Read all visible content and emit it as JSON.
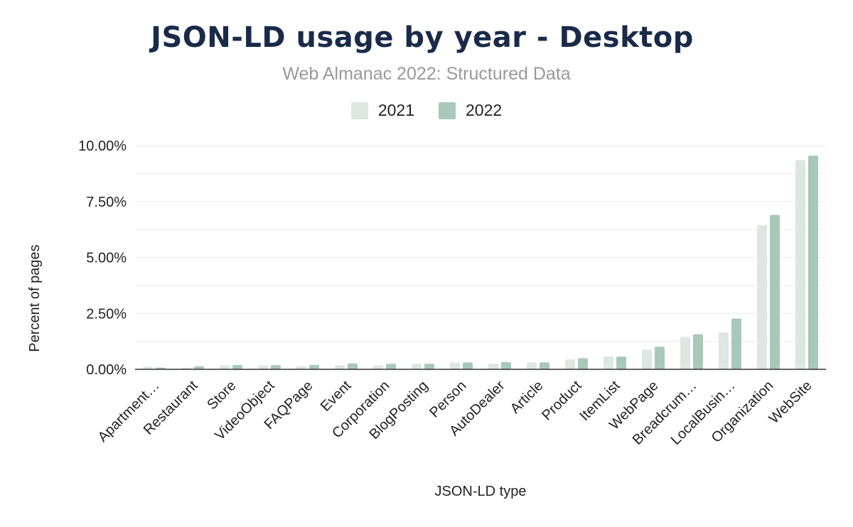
{
  "colors": {
    "s2021": "#dde6e1",
    "s2022": "#a8c9b8",
    "grid": "#ececec",
    "axis": "#333333"
  },
  "chart_data": {
    "type": "bar",
    "title": "JSON-LD usage by year - Desktop",
    "subtitle": "Web Almanac 2022: Structured Data",
    "xlabel": "JSON-LD type",
    "ylabel": "Percent of pages",
    "ylim": [
      0,
      10
    ],
    "yticks": [
      "0.00%",
      "2.50%",
      "5.00%",
      "7.50%",
      "10.00%"
    ],
    "ytick_values": [
      0,
      2.5,
      5,
      7.5,
      10
    ],
    "grid": true,
    "legend_position": "top-center",
    "categories": [
      "Apartment…",
      "Restaurant",
      "Store",
      "VideoObject",
      "FAQPage",
      "Event",
      "Corporation",
      "BlogPosting",
      "Person",
      "AutoDealer",
      "Article",
      "Product",
      "ItemList",
      "WebPage",
      "Breadcrum…",
      "LocalBusin…",
      "Organization",
      "WebSite"
    ],
    "series": [
      {
        "name": "2021",
        "values": [
          0.12,
          0.08,
          0.18,
          0.18,
          0.14,
          0.18,
          0.18,
          0.25,
          0.3,
          0.25,
          0.3,
          0.44,
          0.57,
          0.88,
          1.45,
          1.65,
          6.45,
          9.35
        ]
      },
      {
        "name": "2022",
        "values": [
          0.08,
          0.14,
          0.19,
          0.19,
          0.2,
          0.26,
          0.25,
          0.25,
          0.31,
          0.32,
          0.31,
          0.5,
          0.57,
          1.01,
          1.57,
          2.27,
          6.9,
          9.55
        ]
      }
    ]
  }
}
